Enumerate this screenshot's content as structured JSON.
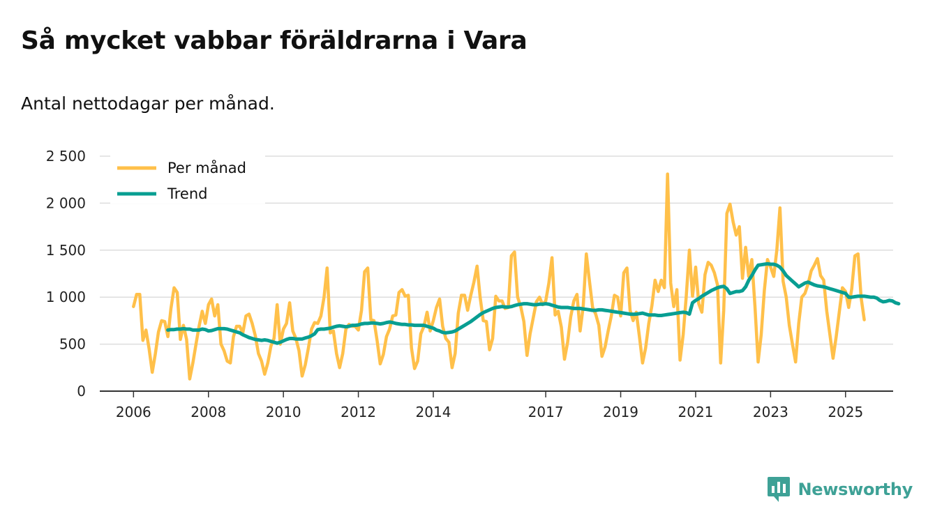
{
  "title": "Så mycket vabbar föräldrarna i Vara",
  "subtitle": "Antal nettodagar per månad.",
  "brand": {
    "name": "Newsworthy",
    "icon": "newsworthy-logo-icon"
  },
  "colors": {
    "monthly": "#ffc04a",
    "trend": "#089e92",
    "grid": "#dddddd",
    "axis": "#333333",
    "brand": "#3ea196"
  },
  "chart_data": {
    "type": "line",
    "title": "Så mycket vabbar föräldrarna i Vara",
    "subtitle": "Antal nettodagar per månad.",
    "xlabel": "",
    "ylabel": "",
    "xlim": [
      2005.1,
      2026.27
    ],
    "ylim": [
      0,
      2500
    ],
    "yticks": [
      0,
      500,
      1000,
      1500,
      2000,
      2500
    ],
    "ytick_labels": [
      "0",
      "500",
      "1 000",
      "1 500",
      "2 000",
      "2 500"
    ],
    "xticks": [
      2006,
      2008,
      2010,
      2012,
      2014,
      2017,
      2019,
      2021,
      2023,
      2025
    ],
    "xtick_labels": [
      "2006",
      "2008",
      "2010",
      "2012",
      "2014",
      "2017",
      "2019",
      "2021",
      "2023",
      "2025"
    ],
    "grid": true,
    "legend_position": "top-left",
    "x_start": 2006.0,
    "x_step": 0.08333333,
    "series": [
      {
        "name": "Per månad",
        "values": [
          900,
          1030,
          1030,
          540,
          650,
          450,
          200,
          400,
          630,
          750,
          740,
          580,
          880,
          1100,
          1050,
          550,
          700,
          550,
          130,
          300,
          500,
          690,
          850,
          720,
          920,
          980,
          800,
          920,
          500,
          430,
          320,
          300,
          580,
          690,
          690,
          620,
          800,
          820,
          720,
          590,
          400,
          320,
          180,
          300,
          480,
          560,
          920,
          500,
          660,
          720,
          940,
          640,
          560,
          430,
          160,
          280,
          460,
          660,
          730,
          720,
          800,
          1000,
          1310,
          620,
          640,
          400,
          250,
          400,
          660,
          710,
          690,
          690,
          650,
          860,
          1270,
          1310,
          760,
          750,
          540,
          290,
          390,
          580,
          660,
          800,
          810,
          1050,
          1080,
          1010,
          1020,
          460,
          240,
          320,
          610,
          690,
          840,
          640,
          750,
          890,
          980,
          690,
          560,
          520,
          250,
          400,
          830,
          1020,
          1020,
          860,
          1020,
          1160,
          1330,
          1000,
          750,
          740,
          440,
          560,
          1010,
          960,
          960,
          880,
          890,
          1440,
          1480,
          1000,
          900,
          740,
          380,
          610,
          780,
          950,
          1000,
          920,
          960,
          1150,
          1420,
          810,
          850,
          680,
          340,
          520,
          790,
          960,
          1030,
          640,
          900,
          1460,
          1170,
          890,
          820,
          700,
          370,
          470,
          640,
          800,
          1020,
          1000,
          800,
          1260,
          1310,
          860,
          750,
          840,
          580,
          300,
          460,
          720,
          910,
          1180,
          1060,
          1180,
          1100,
          2310,
          1150,
          900,
          1080,
          330,
          600,
          1010,
          1500,
          1010,
          1320,
          930,
          840,
          1240,
          1370,
          1340,
          1260,
          1130,
          300,
          860,
          1890,
          1990,
          1800,
          1660,
          1750,
          1200,
          1530,
          1220,
          1400,
          900,
          310,
          600,
          1070,
          1400,
          1320,
          1220,
          1500,
          1950,
          1170,
          1000,
          700,
          500,
          310,
          720,
          1000,
          1040,
          1140,
          1280,
          1340,
          1410,
          1230,
          1180,
          850,
          600,
          350,
          580,
          840,
          1100,
          1060,
          890,
          1090,
          1440,
          1460,
          990,
          760
        ]
      },
      {
        "name": "Trend",
        "values": [
          650,
          655,
          655,
          660,
          660,
          665,
          660,
          660,
          650,
          650,
          650,
          660,
          655,
          640,
          645,
          655,
          665,
          665,
          665,
          660,
          650,
          640,
          630,
          620,
          600,
          585,
          570,
          560,
          550,
          545,
          540,
          545,
          540,
          530,
          520,
          510,
          520,
          535,
          550,
          560,
          560,
          555,
          555,
          555,
          565,
          575,
          590,
          610,
          655,
          660,
          660,
          665,
          670,
          680,
          690,
          695,
          690,
          685,
          690,
          700,
          700,
          705,
          715,
          720,
          720,
          725,
          725,
          720,
          715,
          720,
          730,
          735,
          730,
          720,
          715,
          710,
          710,
          705,
          705,
          700,
          700,
          700,
          700,
          690,
          680,
          670,
          650,
          640,
          625,
          620,
          625,
          630,
          640,
          660,
          680,
          700,
          720,
          740,
          765,
          790,
          815,
          835,
          850,
          865,
          880,
          890,
          895,
          900,
          895,
          895,
          900,
          910,
          920,
          925,
          930,
          930,
          925,
          920,
          920,
          925,
          925,
          930,
          925,
          915,
          905,
          895,
          890,
          890,
          890,
          885,
          880,
          880,
          880,
          875,
          870,
          865,
          860,
          860,
          865,
          865,
          860,
          855,
          850,
          845,
          840,
          835,
          830,
          825,
          820,
          818,
          820,
          825,
          830,
          820,
          810,
          810,
          810,
          805,
          805,
          810,
          815,
          820,
          825,
          830,
          835,
          840,
          835,
          820,
          940,
          965,
          985,
          1010,
          1030,
          1050,
          1070,
          1085,
          1100,
          1110,
          1115,
          1090,
          1040,
          1050,
          1060,
          1060,
          1070,
          1110,
          1180,
          1230,
          1290,
          1340,
          1345,
          1350,
          1355,
          1350,
          1350,
          1340,
          1320,
          1280,
          1230,
          1200,
          1170,
          1140,
          1110,
          1130,
          1150,
          1160,
          1145,
          1130,
          1120,
          1115,
          1110,
          1100,
          1090,
          1080,
          1070,
          1060,
          1050,
          1040,
          1000,
          1000,
          1005,
          1010,
          1010,
          1010,
          1005,
          1000,
          1000,
          990,
          965,
          950,
          955,
          965,
          960,
          940,
          930
        ],
        "x_start": 2006.917
      }
    ]
  }
}
